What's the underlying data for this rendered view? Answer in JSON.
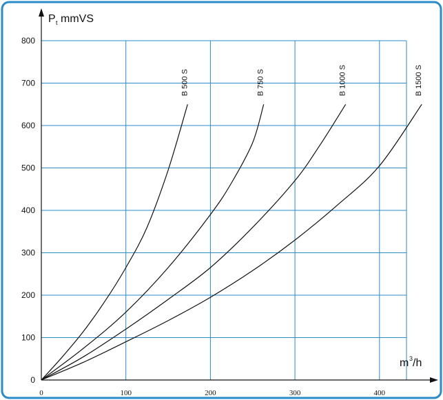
{
  "chart_data": {
    "type": "line",
    "ylabel": {
      "main": "P",
      "subscript": "t",
      "unit": "mmVS"
    },
    "xlabel": {
      "unit": "m",
      "superscript": "3",
      "suffix": "/h"
    },
    "xlim": [
      0,
      450
    ],
    "ylim": [
      0,
      800
    ],
    "x_ticks": [
      "0",
      "100",
      "200",
      "300",
      "400"
    ],
    "y_ticks": [
      "0",
      "100",
      "200",
      "300",
      "400",
      "500",
      "600",
      "700",
      "800"
    ],
    "grid": true,
    "series": [
      {
        "name": "B 500 S",
        "x": [
          0,
          25,
          50,
          75,
          100,
          125,
          150,
          173
        ],
        "y": [
          0,
          55,
          115,
          185,
          265,
          360,
          495,
          650
        ]
      },
      {
        "name": "B 750 S",
        "x": [
          0,
          50,
          100,
          150,
          200,
          225,
          250,
          263
        ],
        "y": [
          0,
          75,
          160,
          265,
          390,
          465,
          560,
          650
        ]
      },
      {
        "name": "B 1000 S",
        "x": [
          0,
          50,
          100,
          150,
          200,
          250,
          300,
          330,
          360
        ],
        "y": [
          0,
          55,
          120,
          190,
          265,
          360,
          470,
          555,
          650
        ]
      },
      {
        "name": "B 1500 S",
        "x": [
          0,
          50,
          100,
          150,
          200,
          250,
          300,
          350,
          400,
          450
        ],
        "y": [
          0,
          42,
          90,
          140,
          195,
          258,
          330,
          412,
          505,
          650
        ]
      }
    ]
  }
}
